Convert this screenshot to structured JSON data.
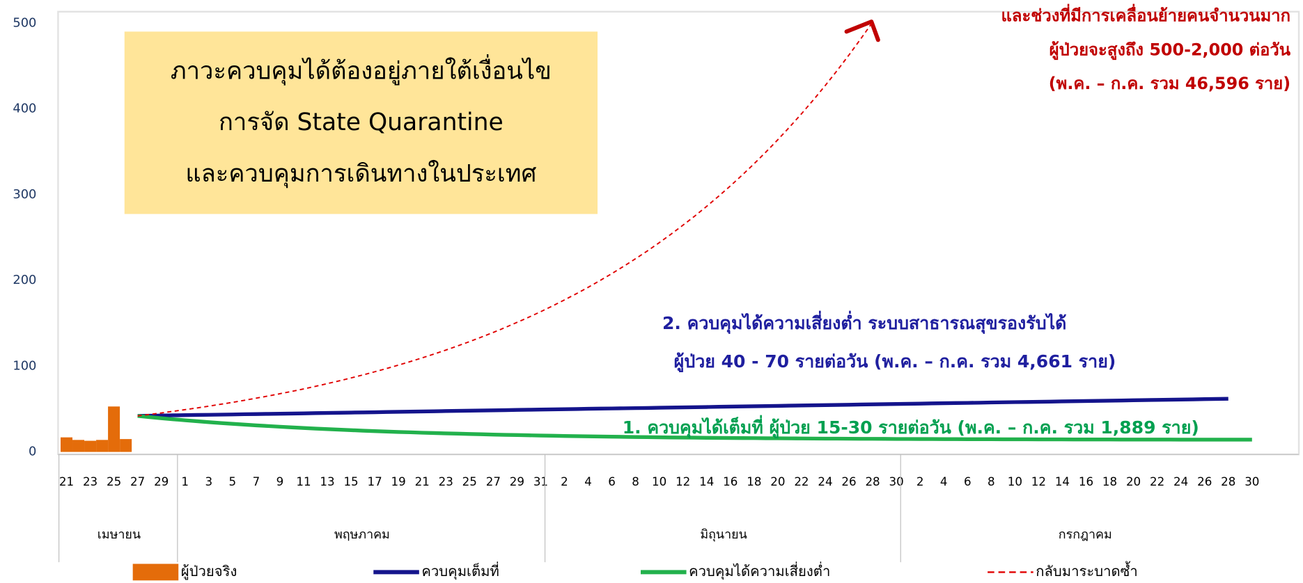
{
  "chart_data": {
    "type": "combo",
    "groups": [
      {
        "label": "เมษายน",
        "categories": [
          "21",
          null,
          "23",
          null,
          "25",
          null,
          "27",
          null,
          "29",
          null
        ]
      },
      {
        "label": "พฤษภาคม",
        "categories": [
          "1",
          null,
          "3",
          null,
          "5",
          null,
          "7",
          null,
          "9",
          null,
          "11",
          null,
          "13",
          null,
          "15",
          null,
          "17",
          null,
          "19",
          null,
          "21",
          null,
          "23",
          null,
          "25",
          null,
          "27",
          null,
          "29",
          null,
          "31"
        ]
      },
      {
        "label": "มิถุนายน",
        "categories": [
          null,
          "2",
          null,
          "4",
          null,
          "6",
          null,
          "8",
          null,
          "10",
          null,
          "12",
          null,
          "14",
          null,
          "16",
          null,
          "18",
          null,
          "20",
          null,
          "22",
          null,
          "24",
          null,
          "26",
          null,
          "28",
          null,
          "30"
        ]
      },
      {
        "label": "กรกฎาคม",
        "categories": [
          null,
          "2",
          null,
          "4",
          null,
          "6",
          null,
          "8",
          null,
          "10",
          null,
          "12",
          null,
          "14",
          null,
          "16",
          null,
          "18",
          null,
          "20",
          null,
          "22",
          null,
          "24",
          null,
          "26",
          null,
          "28",
          null,
          "30",
          null
        ]
      }
    ],
    "ylim": [
      0,
      500
    ],
    "yticks": [
      0,
      100,
      200,
      300,
      400,
      500
    ],
    "grid": false,
    "series": [
      {
        "name": "ผู้ป่วยจริง",
        "type": "bar",
        "color": "#e46c0a",
        "values": [
          17,
          14,
          13,
          14,
          53,
          15,
          null,
          null,
          null,
          null,
          null,
          null,
          null,
          null,
          null,
          null,
          null,
          null,
          null,
          null,
          null,
          null,
          null,
          null,
          null,
          null,
          null,
          null,
          null,
          null,
          null,
          null,
          null,
          null,
          null,
          null,
          null,
          null,
          null,
          null,
          null,
          null,
          null,
          null,
          null,
          null,
          null,
          null,
          null,
          null,
          null,
          null,
          null,
          null,
          null,
          null,
          null,
          null,
          null,
          null,
          null,
          null,
          null,
          null,
          null,
          null,
          null,
          null,
          null,
          null,
          null,
          null,
          null,
          null,
          null,
          null,
          null,
          null,
          null,
          null,
          null,
          null,
          null,
          null,
          null,
          null,
          null,
          null,
          null,
          null,
          null,
          null,
          null,
          null,
          null,
          null,
          null,
          null,
          null,
          null,
          null,
          null
        ]
      },
      {
        "name": "ควบคุมเต็มที่",
        "type": "line",
        "color": "#14148c",
        "dashed": false,
        "values": [
          null,
          null,
          null,
          null,
          null,
          null,
          42.0,
          42.2,
          42.4,
          42.7,
          42.9,
          43.1,
          43.3,
          43.5,
          43.7,
          44.0,
          44.2,
          44.4,
          44.6,
          44.8,
          45.0,
          45.3,
          45.5,
          45.7,
          45.9,
          46.1,
          46.3,
          46.6,
          46.8,
          47.0,
          47.2,
          47.4,
          47.7,
          47.9,
          48.1,
          48.3,
          48.5,
          48.7,
          49.0,
          49.2,
          49.4,
          49.6,
          49.8,
          50.0,
          50.3,
          50.5,
          50.7,
          50.9,
          51.1,
          51.3,
          51.6,
          51.8,
          52.0,
          52.2,
          52.4,
          52.7,
          52.9,
          53.1,
          53.3,
          53.5,
          53.7,
          54.0,
          54.2,
          54.4,
          54.6,
          54.8,
          55.0,
          55.3,
          55.5,
          55.7,
          55.9,
          56.1,
          56.3,
          56.6,
          56.8,
          57.0,
          57.2,
          57.4,
          57.7,
          57.9,
          58.1,
          58.3,
          58.5,
          58.7,
          59.0,
          59.2,
          59.4,
          59.6,
          59.8,
          60.0,
          60.3,
          60.5,
          60.7,
          60.9,
          61.1,
          61.3,
          61.6,
          61.8,
          62.0,
          null,
          null,
          null
        ]
      },
      {
        "name": "ควบคุมได้ความเสี่ยงต่ำ",
        "type": "line",
        "color": "#22b14c",
        "dashed": false,
        "values": [
          null,
          null,
          null,
          null,
          null,
          null,
          42.0,
          40.6,
          39.3,
          38.1,
          36.9,
          35.8,
          34.7,
          33.7,
          32.8,
          31.9,
          31.0,
          30.2,
          29.4,
          28.6,
          27.9,
          27.2,
          26.6,
          26.0,
          25.4,
          24.8,
          24.3,
          23.8,
          23.3,
          22.9,
          22.4,
          22.0,
          21.6,
          21.3,
          20.9,
          20.6,
          20.2,
          19.9,
          19.7,
          19.4,
          19.1,
          18.9,
          18.6,
          18.4,
          18.2,
          18.0,
          17.8,
          17.6,
          17.4,
          17.3,
          17.1,
          16.9,
          16.8,
          16.7,
          16.5,
          16.4,
          16.3,
          16.2,
          16.1,
          16.0,
          15.9,
          15.8,
          15.7,
          15.6,
          15.5,
          15.5,
          15.4,
          15.3,
          15.3,
          15.2,
          15.1,
          15.1,
          15.0,
          15.0,
          14.9,
          14.9,
          14.8,
          14.8,
          14.8,
          14.7,
          14.7,
          14.7,
          14.6,
          14.6,
          14.6,
          14.5,
          14.5,
          14.5,
          14.5,
          14.4,
          14.4,
          14.4,
          14.4,
          14.4,
          14.3,
          14.3,
          14.3,
          14.3,
          14.3,
          14.3,
          14.3,
          null
        ]
      },
      {
        "name": "กลับมาระบาดซ้ำ",
        "type": "line",
        "color": "#e00000",
        "dashed": true,
        "values": [
          null,
          null,
          null,
          null,
          null,
          null,
          42.0,
          43.7,
          45.5,
          47.4,
          49.3,
          51.3,
          53.4,
          55.6,
          57.8,
          60.2,
          62.7,
          65.2,
          67.9,
          70.6,
          73.5,
          76.5,
          79.7,
          82.9,
          86.3,
          89.8,
          93.5,
          97.3,
          101.3,
          105.4,
          109.7,
          114.2,
          118.8,
          123.7,
          128.7,
          134.0,
          139.4,
          145.1,
          151.1,
          157.2,
          163.6,
          170.3,
          177.3,
          184.5,
          192.0,
          199.9,
          208.0,
          216.5,
          225.4,
          234.5,
          244.1,
          254.1,
          264.5,
          275.2,
          286.5,
          298.2,
          310.3,
          323.0,
          336.2,
          349.9,
          364.2,
          379.1,
          394.5,
          410.6,
          427.4,
          444.8,
          463.0,
          481.9,
          501.5,
          null,
          null,
          null,
          null,
          null,
          null,
          null,
          null,
          null,
          null,
          null,
          null,
          null,
          null,
          null,
          null,
          null,
          null,
          null,
          null,
          null,
          null,
          null,
          null,
          null,
          null,
          null,
          null,
          null,
          null,
          null,
          null,
          null
        ]
      }
    ],
    "annotations": [
      {
        "lines": [
          "ภาวะควบคุมได้ต้องอยู่ภายใต้เงื่อนไข",
          "การจัด State Quarantine",
          "และควบคุมการเดินทางในประเทศ"
        ],
        "color": "#000000",
        "background": "#ffe599"
      },
      {
        "lines": [
          "และช่วงที่มีการเคลื่อนย้ายคนจำนวนมาก",
          "ผู้ป่วยจะสูงถึง 500-2,000 ต่อวัน",
          "(พ.ค. –  ก.ค. รวม 46,596 ราย)"
        ],
        "color": "#c00000"
      },
      {
        "lines": [
          "2. ควบคุมได้ความเสี่ยงต่ำ ระบบสาธารณสุขรองรับได้",
          "ผู้ป่วย 40 - 70 รายต่อวัน (พ.ค. – ก.ค. รวม 4,661 ราย)"
        ],
        "color": "#1f1f9f"
      },
      {
        "lines": [
          "1.  ควบคุมได้เต็มที่ ผู้ป่วย 15-30 รายต่อวัน (พ.ค. – ก.ค. รวม 1,889 ราย)"
        ],
        "color": "#00a050"
      }
    ]
  }
}
